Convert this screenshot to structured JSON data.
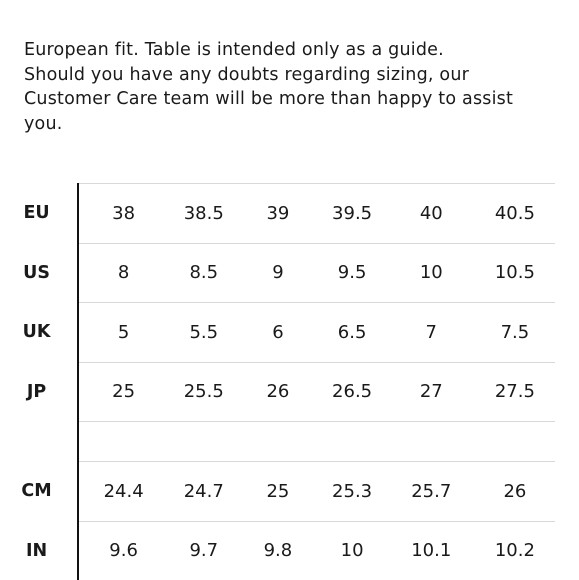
{
  "intro": {
    "lines": [
      "European fit. Table is intended only as a guide.",
      "Should you have any doubts regarding sizing, our",
      "Customer Care team will be more than happy to assist",
      "you."
    ]
  },
  "size_table": {
    "rows": [
      {
        "label": "EU",
        "values": [
          "38",
          "38.5",
          "39",
          "39.5",
          "40",
          "40.5"
        ]
      },
      {
        "label": "US",
        "values": [
          "8",
          "8.5",
          "9",
          "9.5",
          "10",
          "10.5"
        ]
      },
      {
        "label": "UK",
        "values": [
          "5",
          "5.5",
          "6",
          "6.5",
          "7",
          "7.5"
        ]
      },
      {
        "label": "JP",
        "values": [
          "25",
          "25.5",
          "26",
          "26.5",
          "27",
          "27.5"
        ]
      },
      {
        "label": "CM",
        "values": [
          "24.4",
          "24.7",
          "25",
          "25.3",
          "25.7",
          "26"
        ]
      },
      {
        "label": "IN",
        "values": [
          "9.6",
          "9.7",
          "9.8",
          "10",
          "10.1",
          "10.2"
        ]
      }
    ]
  }
}
